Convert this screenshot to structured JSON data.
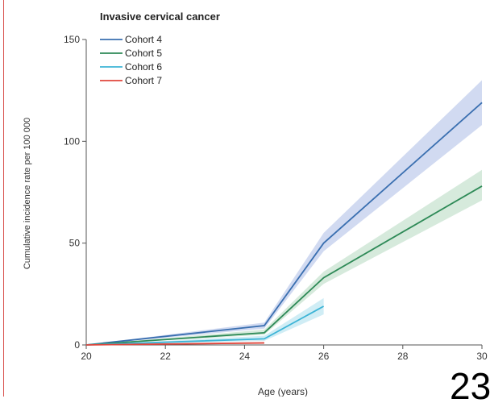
{
  "chart_data": {
    "type": "line",
    "title": "Invasive cervical cancer",
    "xlabel": "Age (years)",
    "ylabel": "Cumulative incidence rate per 100 000",
    "xlim": [
      20,
      30
    ],
    "ylim": [
      0,
      150
    ],
    "x_ticks": [
      "20",
      "22",
      "24",
      "26",
      "28",
      "30"
    ],
    "y_ticks": [
      "0",
      "50",
      "100",
      "150"
    ],
    "legend_position": "top-left",
    "series": [
      {
        "name": "Cohort 4",
        "color": "#3a6fb0",
        "band_color": "#c9d3ee",
        "points": [
          [
            20,
            0
          ],
          [
            24.5,
            9.5
          ],
          [
            26,
            50
          ],
          [
            30,
            119
          ]
        ],
        "upper": [
          [
            20,
            0
          ],
          [
            24.5,
            11
          ],
          [
            26,
            55
          ],
          [
            30,
            130
          ]
        ],
        "lower": [
          [
            20,
            0
          ],
          [
            24.5,
            8
          ],
          [
            26,
            46
          ],
          [
            30,
            108
          ]
        ]
      },
      {
        "name": "Cohort 5",
        "color": "#2e8a57",
        "band_color": "#cfe6d6",
        "points": [
          [
            20,
            0
          ],
          [
            24.5,
            6
          ],
          [
            26,
            33
          ],
          [
            30,
            78
          ]
        ],
        "upper": [
          [
            20,
            0
          ],
          [
            24.5,
            7.5
          ],
          [
            26,
            36
          ],
          [
            30,
            86
          ]
        ],
        "lower": [
          [
            20,
            0
          ],
          [
            24.5,
            5
          ],
          [
            26,
            30
          ],
          [
            30,
            71
          ]
        ]
      },
      {
        "name": "Cohort 6",
        "color": "#3db4d6",
        "band_color": "#c8eaf3",
        "points": [
          [
            20,
            0
          ],
          [
            24.5,
            3
          ],
          [
            26,
            19
          ]
        ],
        "upper": [
          [
            20,
            0
          ],
          [
            24.5,
            4.5
          ],
          [
            26,
            23
          ]
        ],
        "lower": [
          [
            20,
            0
          ],
          [
            24.5,
            2
          ],
          [
            26,
            15
          ]
        ]
      },
      {
        "name": "Cohort 7",
        "color": "#e0463c",
        "band_color": "#f6cfcb",
        "points": [
          [
            20,
            0
          ],
          [
            24.5,
            1
          ]
        ],
        "upper": [
          [
            20,
            0
          ],
          [
            24.5,
            1.5
          ]
        ],
        "lower": [
          [
            20,
            0
          ],
          [
            24.5,
            0.5
          ]
        ]
      }
    ]
  },
  "overlay_text": "23"
}
